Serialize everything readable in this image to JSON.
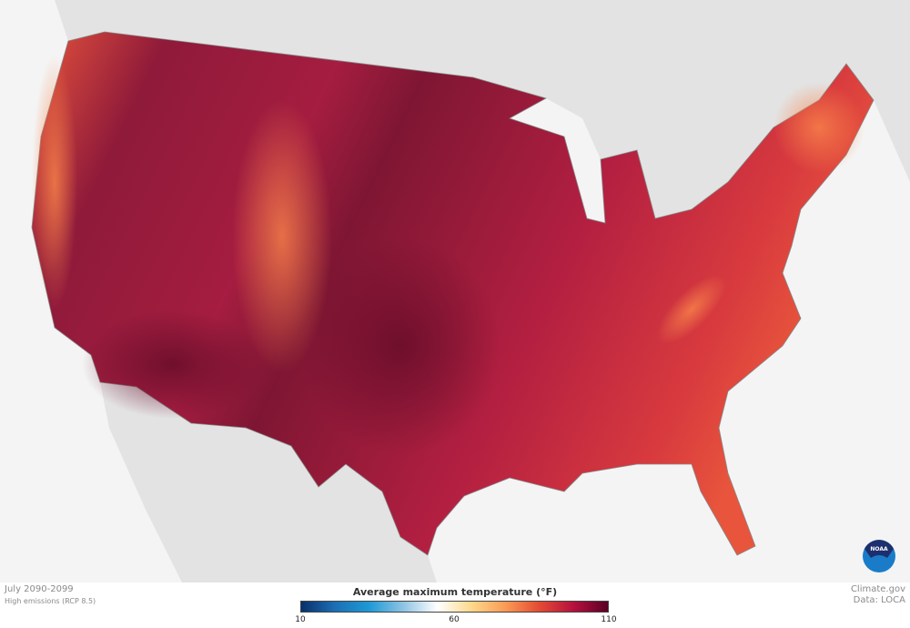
{
  "map": {
    "period": "July 2090-2099",
    "scenario": "High emissions (RCP 8.5)",
    "credit": "Climate.gov",
    "data_source": "Data: LOCA",
    "logo": "NOAA",
    "region": "Contiguous United States"
  },
  "legend": {
    "title": "Average maximum temperature (°F)",
    "min": 10,
    "max": 110,
    "ticks": [
      "10",
      "60",
      "110"
    ],
    "colors": [
      "#08306b",
      "#1c6fb5",
      "#1e9ad6",
      "#8fc4e4",
      "#ffffff",
      "#fdd98a",
      "#fb9a55",
      "#e34a33",
      "#b5103e",
      "#5a0025"
    ]
  },
  "colors": {
    "ocean": "#f4f4f4",
    "land": "#e3e3e3",
    "map_hot": "#9e1a3d",
    "map_hottest": "#6e0f2c",
    "map_warm": "#e8503a"
  }
}
